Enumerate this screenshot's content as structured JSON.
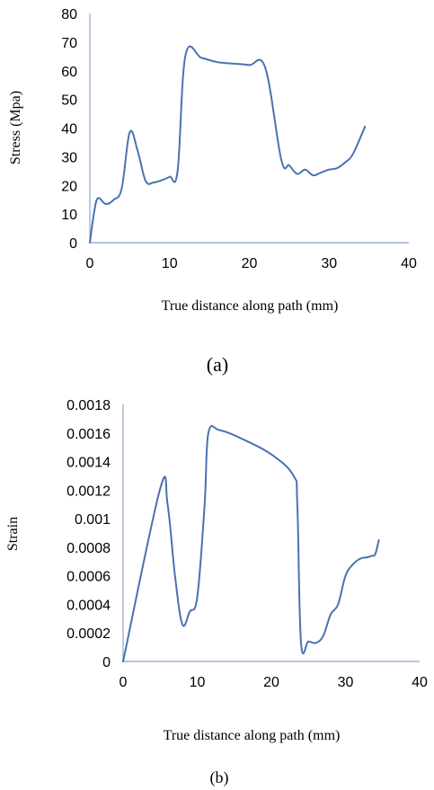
{
  "chart_data": [
    {
      "type": "line",
      "ylabel": "Stress (Mpa)",
      "xlabel": "True distance along path (mm)",
      "caption": "(a)",
      "xlim": [
        0,
        40
      ],
      "ylim": [
        0,
        80
      ],
      "x_ticks": [
        "0",
        "10",
        "20",
        "30",
        "40"
      ],
      "y_ticks": [
        "0",
        "10",
        "20",
        "30",
        "40",
        "50",
        "60",
        "70",
        "80"
      ],
      "series": [
        {
          "points": [
            [
              0,
              0
            ],
            [
              0.5,
              10
            ],
            [
              1,
              15.5
            ],
            [
              2,
              13.5
            ],
            [
              3,
              15
            ],
            [
              4,
              19
            ],
            [
              5,
              38.5
            ],
            [
              6,
              32
            ],
            [
              7,
              21.5
            ],
            [
              8,
              21
            ],
            [
              9,
              21.8
            ],
            [
              10,
              23
            ],
            [
              11,
              25
            ],
            [
              12,
              65.5
            ],
            [
              14,
              64.5
            ],
            [
              16,
              63
            ],
            [
              18,
              62.5
            ],
            [
              20,
              62
            ],
            [
              22,
              61
            ],
            [
              24,
              29
            ],
            [
              25,
              27
            ],
            [
              26,
              24
            ],
            [
              27,
              25.5
            ],
            [
              28,
              23.5
            ],
            [
              29,
              24.5
            ],
            [
              30,
              25.5
            ],
            [
              31,
              26
            ],
            [
              32,
              28
            ],
            [
              33,
              31
            ],
            [
              34.5,
              40.5
            ]
          ]
        }
      ]
    },
    {
      "type": "line",
      "ylabel": "Strain",
      "xlabel": "True distance along path (mm)",
      "caption": "(b)",
      "xlim": [
        0,
        40
      ],
      "ylim": [
        0,
        0.0018
      ],
      "x_ticks": [
        "0",
        "10",
        "20",
        "30",
        "40"
      ],
      "y_ticks": [
        "0",
        "0.0002",
        "0.0004",
        "0.0006",
        "0.0008",
        "0.001",
        "0.0012",
        "0.0014",
        "0.0016",
        "0.0018"
      ],
      "series": [
        {
          "points": [
            [
              0,
              0
            ],
            [
              5,
              0.00121
            ],
            [
              6,
              0.0011
            ],
            [
              7,
              0.0006
            ],
            [
              8,
              0.00026
            ],
            [
              9,
              0.00035
            ],
            [
              10,
              0.00045
            ],
            [
              11,
              0.0011
            ],
            [
              11.5,
              0.0016
            ],
            [
              13,
              0.00162
            ],
            [
              16,
              0.00156
            ],
            [
              20,
              0.00145
            ],
            [
              23,
              0.0013
            ],
            [
              23.5,
              0.0011
            ],
            [
              24,
              0.00013
            ],
            [
              25,
              0.00014
            ],
            [
              26,
              0.00013
            ],
            [
              27,
              0.00018
            ],
            [
              28,
              0.00033
            ],
            [
              29,
              0.0004
            ],
            [
              30,
              0.0006
            ],
            [
              31,
              0.00068
            ],
            [
              32,
              0.00072
            ],
            [
              33,
              0.00073
            ],
            [
              33.5,
              0.00074
            ],
            [
              34,
              0.00075
            ],
            [
              34.5,
              0.00085
            ]
          ]
        }
      ]
    }
  ]
}
